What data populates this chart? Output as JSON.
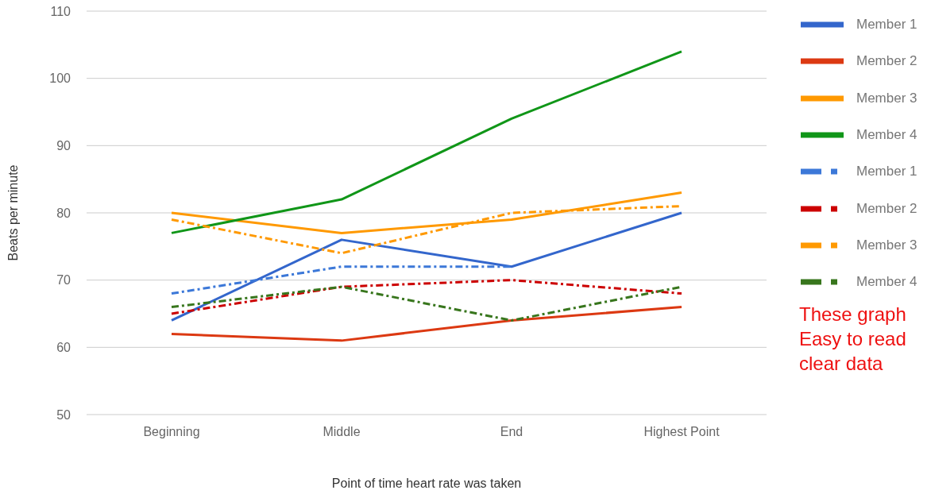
{
  "chart_data": {
    "type": "line",
    "xlabel": "Point of time heart rate was taken",
    "ylabel": "Beats per minute",
    "categories": [
      "Beginning",
      "Middle",
      "End",
      "Highest Point"
    ],
    "series": [
      {
        "name": "Member 1",
        "color": "#3366cc",
        "line_style": "solid",
        "values": [
          64,
          76,
          72,
          80
        ]
      },
      {
        "name": "Member 2",
        "color": "#dc3912",
        "line_style": "solid",
        "values": [
          62,
          61,
          64,
          66
        ]
      },
      {
        "name": "Member 3",
        "color": "#ff9900",
        "line_style": "solid",
        "values": [
          80,
          77,
          79,
          83
        ]
      },
      {
        "name": "Member 4",
        "color": "#109618",
        "line_style": "solid",
        "values": [
          77,
          82,
          94,
          104
        ]
      },
      {
        "name": "Member 1",
        "color": "#3c78d8",
        "line_style": "dashed",
        "values": [
          68,
          72,
          72,
          null
        ]
      },
      {
        "name": "Member 2",
        "color": "#cc0000",
        "line_style": "dashed",
        "values": [
          65,
          69,
          70,
          68
        ]
      },
      {
        "name": "Member 3",
        "color": "#ff9900",
        "line_style": "dashed",
        "values": [
          79,
          74,
          80,
          81
        ]
      },
      {
        "name": "Member 4",
        "color": "#38761d",
        "line_style": "dashed",
        "values": [
          66,
          69,
          64,
          69
        ]
      }
    ],
    "ylim": [
      50,
      110
    ],
    "yticks": [
      50,
      60,
      70,
      80,
      90,
      100,
      110
    ],
    "grid": "y",
    "legend": "right",
    "marker": "none",
    "annotations": [
      "These graph",
      "Easy to read",
      "clear data"
    ]
  }
}
